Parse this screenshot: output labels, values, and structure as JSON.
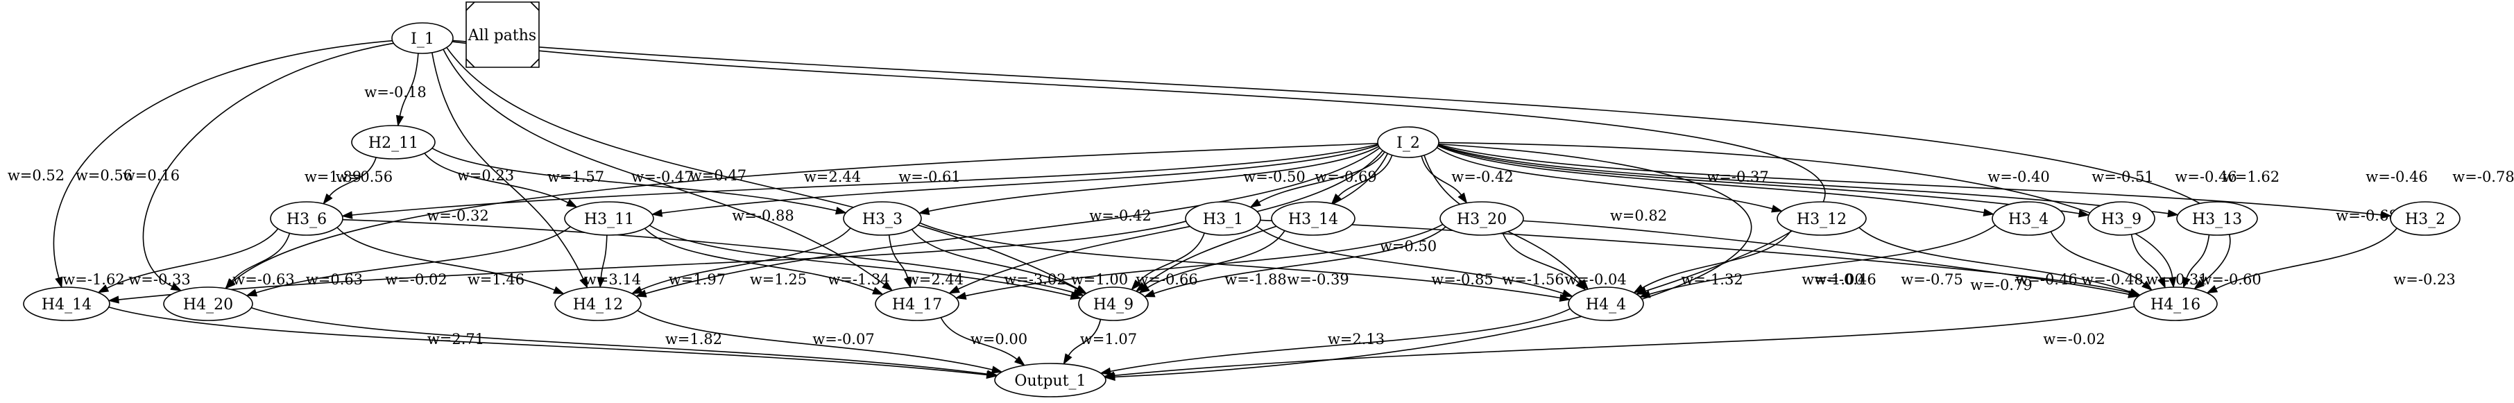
{
  "note_text": "All paths",
  "nodes": [
    {
      "id": "I_1",
      "label": "I_1"
    },
    {
      "id": "I_2",
      "label": "I_2"
    },
    {
      "id": "H2_11",
      "label": "H2_11"
    },
    {
      "id": "H3_6",
      "label": "H3_6"
    },
    {
      "id": "H3_11",
      "label": "H3_11"
    },
    {
      "id": "H3_3",
      "label": "H3_3"
    },
    {
      "id": "H3_1",
      "label": "H3_1"
    },
    {
      "id": "H3_14",
      "label": "H3_14"
    },
    {
      "id": "H3_20",
      "label": "H3_20"
    },
    {
      "id": "H3_12",
      "label": "H3_12"
    },
    {
      "id": "H3_4",
      "label": "H3_4"
    },
    {
      "id": "H3_9",
      "label": "H3_9"
    },
    {
      "id": "H3_13",
      "label": "H3_13"
    },
    {
      "id": "H3_2",
      "label": "H3_2"
    },
    {
      "id": "H4_14",
      "label": "H4_14"
    },
    {
      "id": "H4_20",
      "label": "H4_20"
    },
    {
      "id": "H4_12",
      "label": "H4_12"
    },
    {
      "id": "H4_17",
      "label": "H4_17"
    },
    {
      "id": "H4_9",
      "label": "H4_9"
    },
    {
      "id": "H4_4",
      "label": "H4_4"
    },
    {
      "id": "H4_16",
      "label": "H4_16"
    },
    {
      "id": "Output_1",
      "label": "Output_1"
    }
  ],
  "edges": [
    {
      "from": "I_1",
      "to": "H2_11",
      "label": "w=-0.18"
    },
    {
      "from": "I_1",
      "to": "H4_14",
      "label": "w=0.52"
    },
    {
      "from": "I_1",
      "to": "H4_20",
      "label": "w=0.56"
    },
    {
      "from": "I_1",
      "to": "H4_12",
      "label": "w=0.23"
    },
    {
      "from": "I_1",
      "to": "H4_17",
      "label": "w=0.16"
    },
    {
      "from": "I_1",
      "to": "H4_9",
      "label": "w=0.47"
    },
    {
      "from": "I_1",
      "to": "H4_4",
      "label": "w=1.62"
    },
    {
      "from": "I_1",
      "to": "H4_16",
      "label": "w=-0.78"
    },
    {
      "from": "H2_11",
      "to": "H3_6",
      "label": "w=1.89"
    },
    {
      "from": "H2_11",
      "to": "H3_11",
      "label": "w=1.57"
    },
    {
      "from": "H2_11",
      "to": "H3_3",
      "label": "w=2.44"
    },
    {
      "from": "I_2",
      "to": "H3_6",
      "label": "w=0.56"
    },
    {
      "from": "I_2",
      "to": "H3_11",
      "label": "w=-0.47"
    },
    {
      "from": "I_2",
      "to": "H3_3",
      "label": "w=-0.61"
    },
    {
      "from": "I_2",
      "to": "H3_1",
      "label": "w=-0.50"
    },
    {
      "from": "I_2",
      "to": "H3_14",
      "label": "w=-0.69"
    },
    {
      "from": "I_2",
      "to": "H3_20",
      "label": "w=-0.42"
    },
    {
      "from": "I_2",
      "to": "H3_12",
      "label": "w=-0.37"
    },
    {
      "from": "I_2",
      "to": "H3_4",
      "label": "w=-0.40"
    },
    {
      "from": "I_2",
      "to": "H3_9",
      "label": "w=-0.51"
    },
    {
      "from": "I_2",
      "to": "H3_13",
      "label": "w=-0.46"
    },
    {
      "from": "I_2",
      "to": "H3_2",
      "label": "w=-0.46"
    },
    {
      "from": "I_2",
      "to": "H4_20",
      "label": "w=-0.32"
    },
    {
      "from": "I_2",
      "to": "H4_12",
      "label": "w=-0.88"
    },
    {
      "from": "I_2",
      "to": "H4_17",
      "label": "w=-0.42"
    },
    {
      "from": "I_2",
      "to": "H4_9",
      "label": "w=0.50"
    },
    {
      "from": "I_2",
      "to": "H4_4",
      "label": "w=0.82"
    },
    {
      "from": "I_2",
      "to": "H4_16",
      "label": "w=-0.68"
    },
    {
      "from": "I_2",
      "to": "Output_1",
      "label": "w=-0.79"
    },
    {
      "from": "H3_6",
      "to": "H4_14",
      "label": "w=-1.62"
    },
    {
      "from": "H3_6",
      "to": "H4_20",
      "label": "w=-0.33"
    },
    {
      "from": "H3_6",
      "to": "H4_12",
      "label": "w=0.63"
    },
    {
      "from": "H3_6",
      "to": "H4_9",
      "label": "w=-0.02"
    },
    {
      "from": "H3_11",
      "to": "H4_20",
      "label": "w=-0.63"
    },
    {
      "from": "H3_11",
      "to": "H4_12",
      "label": "w=1.46"
    },
    {
      "from": "H3_11",
      "to": "H4_17",
      "label": "w=1.25"
    },
    {
      "from": "H3_11",
      "to": "H4_9",
      "label": "w=-1.34"
    },
    {
      "from": "H3_3",
      "to": "H4_12",
      "label": "w=3.14"
    },
    {
      "from": "H3_3",
      "to": "H4_17",
      "label": "w=2.44"
    },
    {
      "from": "H3_3",
      "to": "H4_9",
      "label": "w=-3.02"
    },
    {
      "from": "H3_3",
      "to": "H4_4",
      "label": "w=-0.66"
    },
    {
      "from": "H3_1",
      "to": "H4_14",
      "label": "w=1.97"
    },
    {
      "from": "H3_1",
      "to": "H4_9",
      "label": "w=-1.88"
    },
    {
      "from": "H3_1",
      "to": "H4_4",
      "label": "w=-1.56"
    },
    {
      "from": "H3_14",
      "to": "H4_9",
      "label": "w=-0.39"
    },
    {
      "from": "H3_20",
      "to": "H4_17",
      "label": "w=1.00"
    },
    {
      "from": "H3_20",
      "to": "H4_9",
      "label": "w=-0.85"
    },
    {
      "from": "H3_20",
      "to": "H4_4",
      "label": "w=-0.04"
    },
    {
      "from": "H3_20",
      "to": "H4_16",
      "label": "w=-0.46"
    },
    {
      "from": "H3_12",
      "to": "H4_4",
      "label": "w=-1.00"
    },
    {
      "from": "H3_4",
      "to": "H4_4",
      "label": "w=-0.46"
    },
    {
      "from": "H3_4",
      "to": "H4_16",
      "label": "w=-0.48"
    },
    {
      "from": "H3_9",
      "to": "H4_16",
      "label": "w=-0.31"
    },
    {
      "from": "H3_13",
      "to": "H4_16",
      "label": "w=-0.60"
    },
    {
      "from": "H3_2",
      "to": "H4_16",
      "label": "w=-0.23"
    },
    {
      "from": "H3_1",
      "to": "H4_16",
      "label": "w=-1.32"
    },
    {
      "from": "H3_12",
      "to": "H4_16",
      "label": "w=-0.75"
    },
    {
      "from": "H4_14",
      "to": "Output_1",
      "label": "w=2.71"
    },
    {
      "from": "H4_20",
      "to": "Output_1",
      "label": "w=1.82"
    },
    {
      "from": "H4_12",
      "to": "Output_1",
      "label": "w=-0.07"
    },
    {
      "from": "H4_17",
      "to": "Output_1",
      "label": "w=0.00"
    },
    {
      "from": "H4_9",
      "to": "Output_1",
      "label": "w=1.07"
    },
    {
      "from": "H4_4",
      "to": "Output_1",
      "label": "w=2.13"
    },
    {
      "from": "H4_16",
      "to": "Output_1",
      "label": "w=-0.02"
    }
  ]
}
